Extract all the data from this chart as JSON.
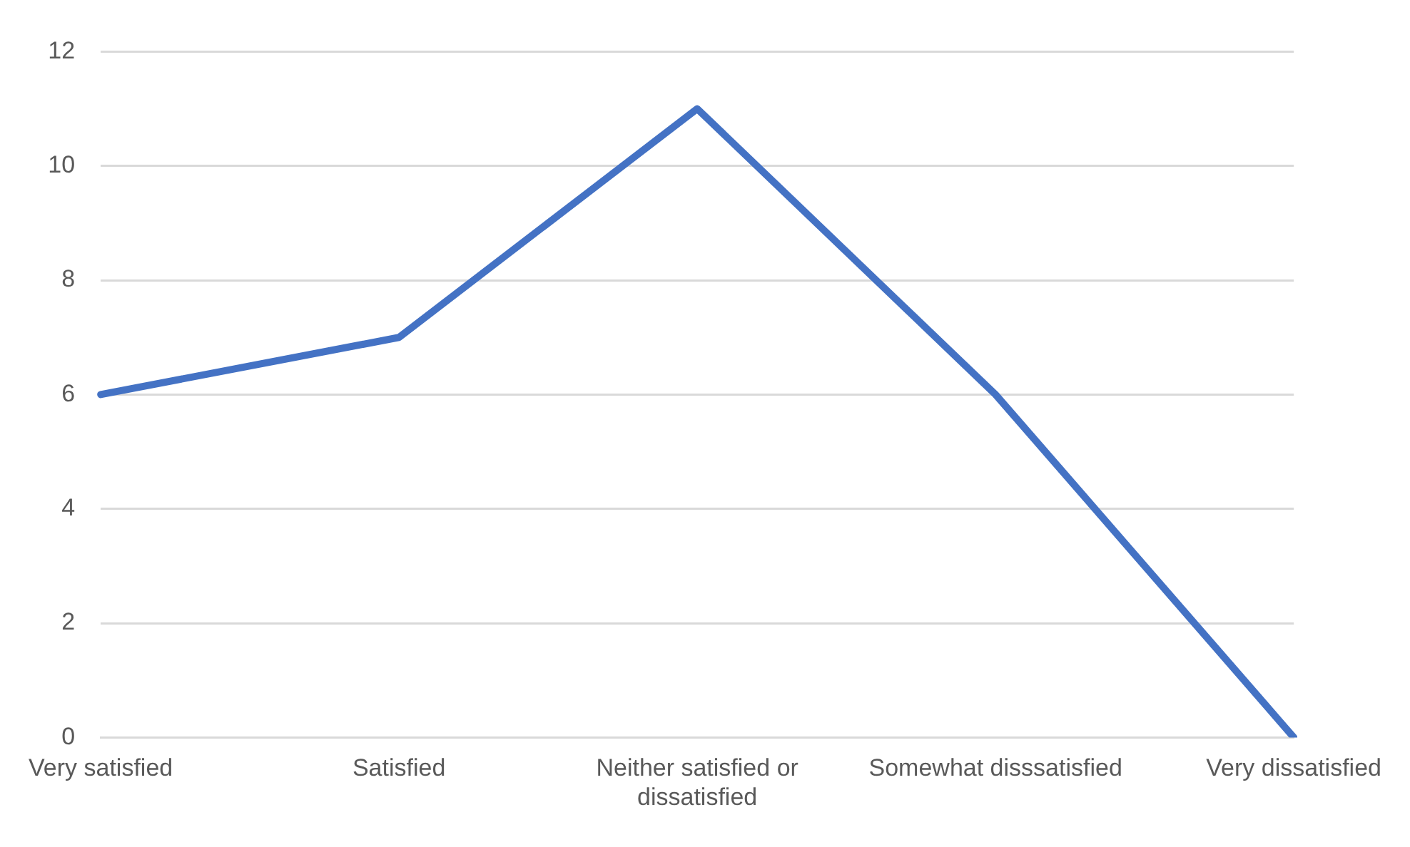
{
  "chart_data": {
    "type": "line",
    "categories": [
      "Very satisfied",
      "Satisfied",
      "Neither satisfied or dissatisfied",
      "Somewhat disssatisfied",
      "Very dissatisfied"
    ],
    "series": [
      {
        "color": "#4472c4",
        "values": [
          6,
          7,
          11,
          6,
          0
        ]
      }
    ],
    "ylim": [
      0,
      12
    ],
    "yticks": [
      0,
      2,
      4,
      6,
      8,
      10,
      12
    ],
    "grid": "y",
    "legend": false,
    "marker": "none",
    "line_style": "solid"
  }
}
